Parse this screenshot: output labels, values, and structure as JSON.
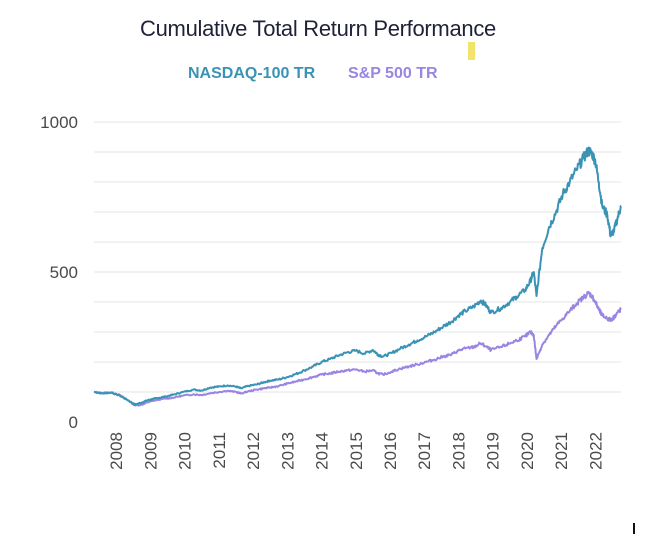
{
  "chart_data": {
    "type": "line",
    "title": "Cumulative Total Return Performance",
    "xlabel": "",
    "ylabel": "",
    "ylim": [
      0,
      1000
    ],
    "xlim": [
      2007.35,
      2022.75
    ],
    "yticks": [
      0,
      500,
      1000
    ],
    "yticks_labeled": [
      "0",
      "500",
      "1000"
    ],
    "xtick_labels": [
      "2008",
      "2009",
      "2010",
      "2011",
      "2012",
      "2013",
      "2014",
      "2015",
      "2016",
      "2017",
      "2018",
      "2019",
      "2020",
      "2021",
      "2022"
    ],
    "grid": true,
    "legend_position": "top-center",
    "series": [
      {
        "name": "NASDAQ-100 TR",
        "color": "#3a93b5",
        "x": [
          2007.35,
          2007.6,
          2007.85,
          2008.1,
          2008.35,
          2008.55,
          2008.75,
          2008.9,
          2009.05,
          2009.2,
          2009.45,
          2009.7,
          2009.95,
          2010.25,
          2010.5,
          2010.75,
          2011.0,
          2011.25,
          2011.5,
          2011.65,
          2011.85,
          2012.1,
          2012.3,
          2012.5,
          2012.75,
          2013.0,
          2013.25,
          2013.5,
          2013.75,
          2014.0,
          2014.25,
          2014.5,
          2014.75,
          2015.0,
          2015.25,
          2015.5,
          2015.65,
          2015.8,
          2016.05,
          2016.3,
          2016.55,
          2016.8,
          2017.05,
          2017.3,
          2017.55,
          2017.8,
          2018.0,
          2018.2,
          2018.45,
          2018.65,
          2018.8,
          2018.95,
          2019.25,
          2019.5,
          2019.7,
          2019.95,
          2020.1,
          2020.2,
          2020.28,
          2020.45,
          2020.65,
          2020.85,
          2021.05,
          2021.25,
          2021.45,
          2021.65,
          2021.8,
          2021.9,
          2022.0,
          2022.1,
          2022.2,
          2022.35,
          2022.45,
          2022.55,
          2022.65,
          2022.75
        ],
        "y": [
          100,
          95,
          98,
          88,
          72,
          58,
          65,
          72,
          76,
          80,
          85,
          92,
          100,
          108,
          105,
          115,
          118,
          122,
          118,
          112,
          120,
          125,
          132,
          138,
          142,
          150,
          160,
          172,
          185,
          200,
          210,
          222,
          232,
          238,
          228,
          240,
          225,
          218,
          230,
          245,
          258,
          272,
          285,
          300,
          318,
          335,
          355,
          370,
          385,
          405,
          390,
          365,
          380,
          400,
          418,
          440,
          470,
          500,
          420,
          580,
          650,
          700,
          760,
          800,
          840,
          880,
          905,
          895,
          870,
          800,
          720,
          690,
          620,
          640,
          680,
          720
        ]
      },
      {
        "name": "S&P 500 TR",
        "color": "#9a85e3",
        "x": [
          2007.35,
          2007.6,
          2007.85,
          2008.1,
          2008.35,
          2008.55,
          2008.75,
          2008.9,
          2009.05,
          2009.2,
          2009.45,
          2009.7,
          2009.95,
          2010.25,
          2010.5,
          2010.75,
          2011.0,
          2011.25,
          2011.5,
          2011.65,
          2011.85,
          2012.1,
          2012.3,
          2012.5,
          2012.75,
          2013.0,
          2013.25,
          2013.5,
          2013.75,
          2014.0,
          2014.25,
          2014.5,
          2014.75,
          2015.0,
          2015.25,
          2015.5,
          2015.65,
          2015.8,
          2016.05,
          2016.3,
          2016.55,
          2016.8,
          2017.05,
          2017.3,
          2017.55,
          2017.8,
          2018.0,
          2018.2,
          2018.45,
          2018.65,
          2018.8,
          2018.95,
          2019.25,
          2019.5,
          2019.7,
          2019.95,
          2020.1,
          2020.2,
          2020.28,
          2020.45,
          2020.65,
          2020.85,
          2021.05,
          2021.25,
          2021.45,
          2021.65,
          2021.8,
          2021.9,
          2022.0,
          2022.1,
          2022.2,
          2022.35,
          2022.45,
          2022.55,
          2022.65,
          2022.75
        ],
        "y": [
          100,
          97,
          99,
          90,
          72,
          55,
          58,
          65,
          70,
          74,
          78,
          82,
          88,
          92,
          90,
          96,
          100,
          104,
          100,
          95,
          102,
          108,
          112,
          115,
          120,
          128,
          135,
          142,
          150,
          158,
          162,
          168,
          172,
          175,
          168,
          172,
          162,
          158,
          168,
          178,
          185,
          192,
          200,
          208,
          218,
          225,
          238,
          245,
          250,
          262,
          252,
          240,
          250,
          262,
          272,
          285,
          300,
          290,
          210,
          258,
          290,
          320,
          345,
          370,
          395,
          415,
          430,
          420,
          400,
          375,
          355,
          345,
          340,
          350,
          365,
          375
        ]
      }
    ]
  }
}
